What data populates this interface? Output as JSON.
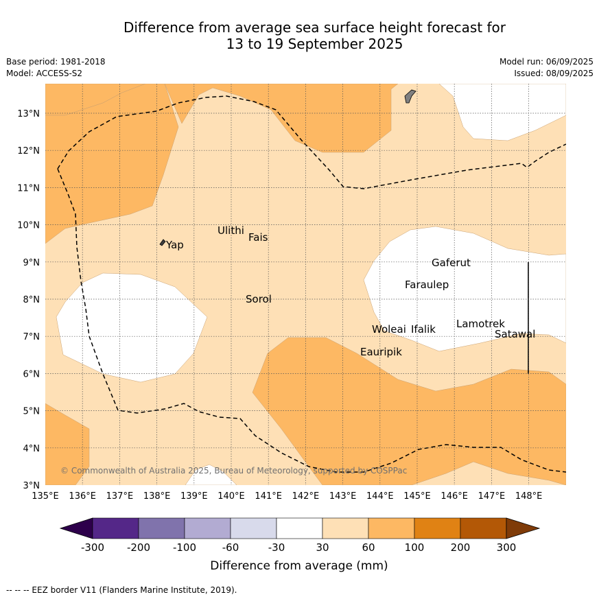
{
  "header": {
    "title_line1": "Difference from average sea surface height forecast for",
    "title_line2": "13 to 19 September 2025",
    "base_period": "Base period: 1981-2018",
    "model": "Model: ACCESS-S2",
    "model_run": "Model run: 06/09/2025",
    "issued": "Issued: 08/09/2025"
  },
  "map": {
    "lon_labels": [
      "135°E",
      "136°E",
      "137°E",
      "138°E",
      "139°E",
      "140°E",
      "141°E",
      "142°E",
      "143°E",
      "144°E",
      "145°E",
      "146°E",
      "147°E",
      "148°E"
    ],
    "lat_labels": [
      "3°N",
      "4°N",
      "5°N",
      "6°N",
      "7°N",
      "8°N",
      "9°N",
      "10°N",
      "11°N",
      "12°N",
      "13°N"
    ],
    "places": [
      {
        "name": "Yap"
      },
      {
        "name": "Ulithi"
      },
      {
        "name": "Fais"
      },
      {
        "name": "Sorol"
      },
      {
        "name": "Gaferut"
      },
      {
        "name": "Faraulep"
      },
      {
        "name": "Woleai"
      },
      {
        "name": "Ifalik"
      },
      {
        "name": "Lamotrek"
      },
      {
        "name": "Satawal"
      },
      {
        "name": "Eauripik"
      }
    ],
    "copyright": "© Commonwealth of Australia 2025, Bureau of Meteorology, supported by COSPPac",
    "colors": {
      "c30_60": "#fee0b6",
      "c60_100": "#fdb863",
      "neutral": "#ffffff",
      "land": "#808080"
    }
  },
  "colorbar": {
    "labels": [
      "-300",
      "-200",
      "-100",
      "-60",
      "-30",
      "30",
      "60",
      "100",
      "200",
      "300"
    ],
    "colors": [
      "#2d004b",
      "#542788",
      "#8073ac",
      "#b2abd2",
      "#d8daeb",
      "#ffffff",
      "#fee0b6",
      "#fdb863",
      "#e08214",
      "#b35806",
      "#7f3b08"
    ],
    "title": "Difference from average (mm)"
  },
  "footer": {
    "legend_text": "-- -- -- EEZ border V11 (Flanders Marine Institute, 2019)."
  }
}
